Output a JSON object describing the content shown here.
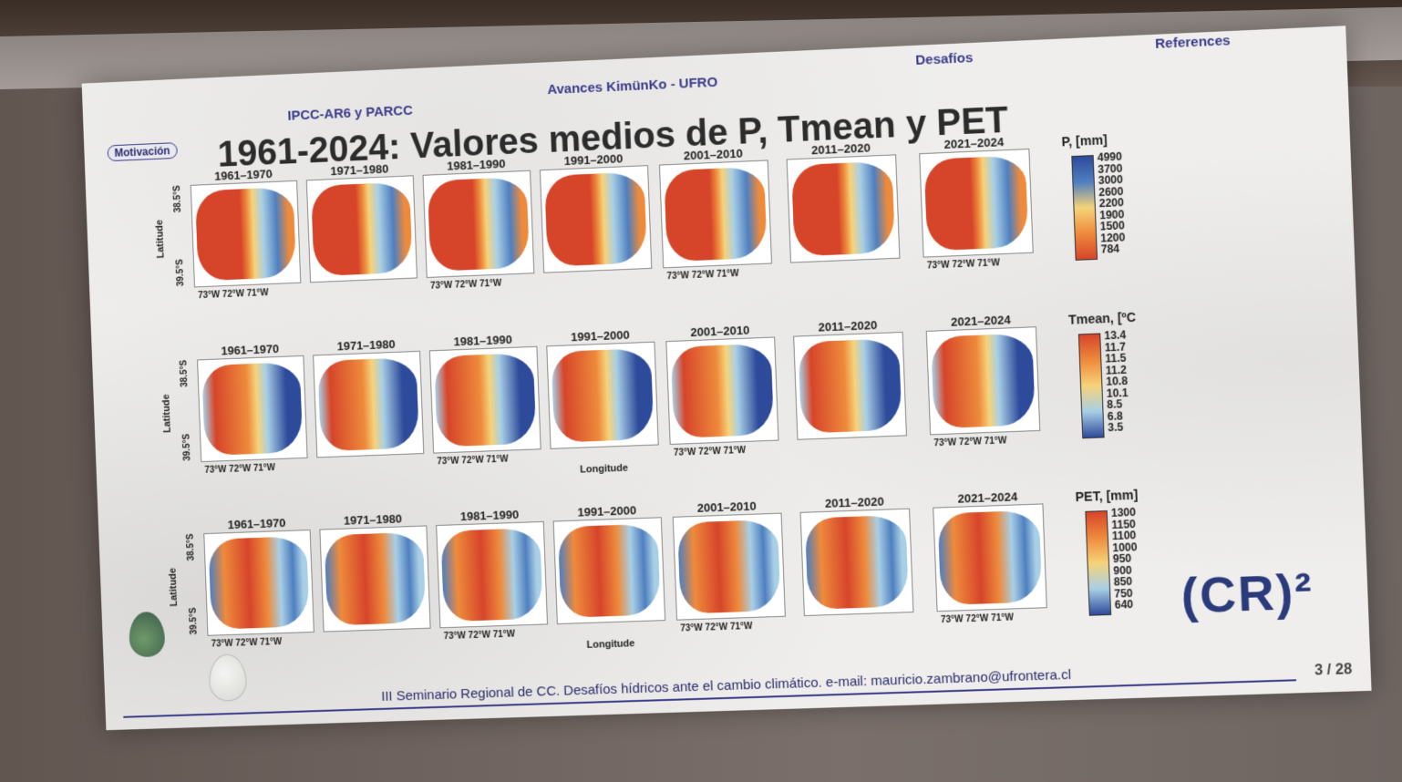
{
  "nav": {
    "ipcc": "IPCC-AR6 y PARCC",
    "avances": "Avances KimünKo - UFRO",
    "desafios": "Desafíos",
    "references": "References"
  },
  "motivacion": "Motivación",
  "title": "1961-2024: Valores medios de P, Tmean y PET",
  "periods": [
    "1961–1970",
    "1971–1980",
    "1981–1990",
    "1991–2000",
    "2001–2010",
    "2011–2020",
    "2021–2024"
  ],
  "axes": {
    "latitude": "Latitude",
    "longitude": "Longitude",
    "lat_ticks": [
      "38.5°S",
      "39.5°S"
    ],
    "lon_ticks": [
      "73°W",
      "72°W",
      "71°W"
    ]
  },
  "rows": [
    {
      "variable": "P, [mm]",
      "colorbar_labels": [
        "4990",
        "3700",
        "3000",
        "2600",
        "2200",
        "1900",
        "1500",
        "1200",
        "784"
      ]
    },
    {
      "variable": "Tmean, [ºC",
      "colorbar_labels": [
        "13.4",
        "11.7",
        "11.5",
        "11.2",
        "10.8",
        "10.1",
        "8.5",
        "6.8",
        "3.5"
      ]
    },
    {
      "variable": "PET, [mm]",
      "colorbar_labels": [
        "1300",
        "1150",
        "1100",
        "1000",
        "950",
        "900",
        "850",
        "750",
        "640"
      ]
    }
  ],
  "colors": {
    "warm": "#d6452a",
    "orange": "#ee8a3c",
    "yellow": "#f6d37a",
    "lightblue": "#a8cfe6",
    "blue": "#4f7fbf",
    "darkblue": "#2e4a9a"
  },
  "footer": "III Seminario Regional de CC. Desafíos hídricos ante el cambio climático. e-mail: mauricio.zambrano@ufrontera.cl",
  "page": "3 / 28",
  "logo": "(CR)²"
}
